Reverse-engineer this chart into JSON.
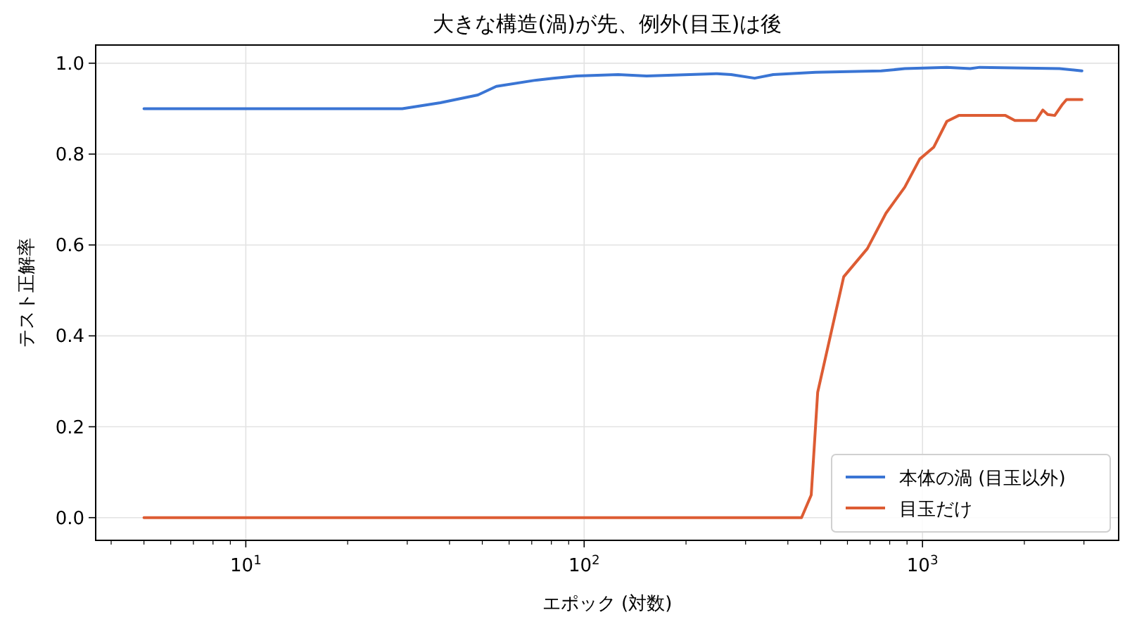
{
  "chart_data": {
    "type": "line",
    "title": "大きな構造(渦)が先、例外(目玉)は後",
    "xlabel": "エポック (対数)",
    "ylabel": "テスト正解率",
    "log": "x",
    "xlim": [
      3.6,
      3800
    ],
    "ylim": [
      -0.05,
      1.04
    ],
    "xticks": [
      {
        "value": 10,
        "label": "10$^{1}$"
      },
      {
        "value": 100,
        "label": "10$^{2}$"
      },
      {
        "value": 1000,
        "label": "10$^{3}$"
      }
    ],
    "yticks": [
      {
        "value": 0,
        "label": "0.0"
      },
      {
        "value": 0.2,
        "label": "0.2"
      },
      {
        "value": 0.4,
        "label": "0.4"
      },
      {
        "value": 0.6,
        "label": "0.6"
      },
      {
        "value": 0.8,
        "label": "0.8"
      },
      {
        "value": 1.0,
        "label": "1.0"
      }
    ],
    "grid": true,
    "legend": "bottom right",
    "line_style": "solid",
    "marker": "none",
    "series": [
      {
        "name": "本体の渦 (目玉以外)",
        "color": "#3a75d4",
        "x": [
          5,
          29,
          37.6,
          48.5,
          55,
          71,
          81,
          95,
          126,
          153,
          247,
          272,
          319,
          362,
          483,
          755,
          886,
          1180,
          1383,
          1476,
          2541,
          2800,
          2960
        ],
        "values": [
          0.9,
          0.9,
          0.913,
          0.93,
          0.949,
          0.962,
          0.967,
          0.972,
          0.975,
          0.972,
          0.977,
          0.975,
          0.967,
          0.975,
          0.98,
          0.983,
          0.988,
          0.991,
          0.988,
          0.991,
          0.988,
          0.985,
          0.983
        ]
      },
      {
        "name": "目玉だけ",
        "color": "#dd5c33",
        "x": [
          5,
          439,
          469,
          490,
          585,
          687,
          780,
          886,
          981,
          1079,
          1180,
          1280,
          1758,
          1875,
          2165,
          2268,
          2344,
          2459,
          2582,
          2665,
          2960
        ],
        "values": [
          0,
          0,
          0.05,
          0.276,
          0.53,
          0.592,
          0.67,
          0.727,
          0.789,
          0.815,
          0.872,
          0.885,
          0.885,
          0.874,
          0.874,
          0.897,
          0.887,
          0.885,
          0.908,
          0.92,
          0.92
        ]
      }
    ]
  }
}
